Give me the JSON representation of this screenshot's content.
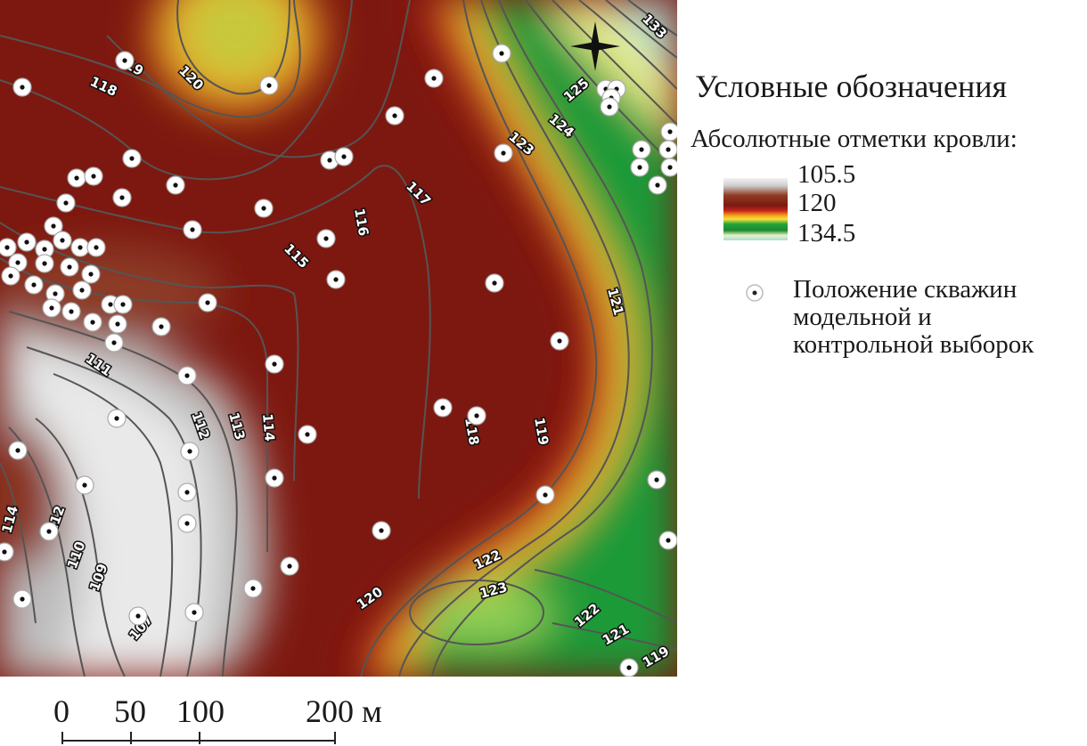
{
  "map": {
    "contour_labels": [
      "107",
      "109",
      "110",
      "111",
      "112",
      "113",
      "114",
      "115",
      "116",
      "117",
      "118",
      "119",
      "120",
      "121",
      "122",
      "123",
      "124",
      "125",
      "133"
    ],
    "north_arrow": "north-arrow-icon",
    "colors": {
      "low": "#f2f2f2",
      "mid_low": "#cfcfcf",
      "brown": "#7a1a10",
      "red": "#c0221a",
      "orange": "#f5a11c",
      "yellow": "#f6e23a",
      "green": "#22a23a",
      "light_green": "#8ccf5a",
      "teal": "#a8dcd6",
      "contour": "#555555"
    }
  },
  "legend": {
    "title": "Условные обозначения",
    "subtitle": "Абсолютные отметки кровли:",
    "scale_values": [
      "105.5",
      "120",
      "134.5"
    ],
    "well_label_lines": [
      "Положение скважин",
      "модельной  и",
      "контрольной выборок"
    ]
  },
  "scalebar": {
    "labels": [
      "0",
      "50",
      "100",
      "200 м"
    ]
  }
}
